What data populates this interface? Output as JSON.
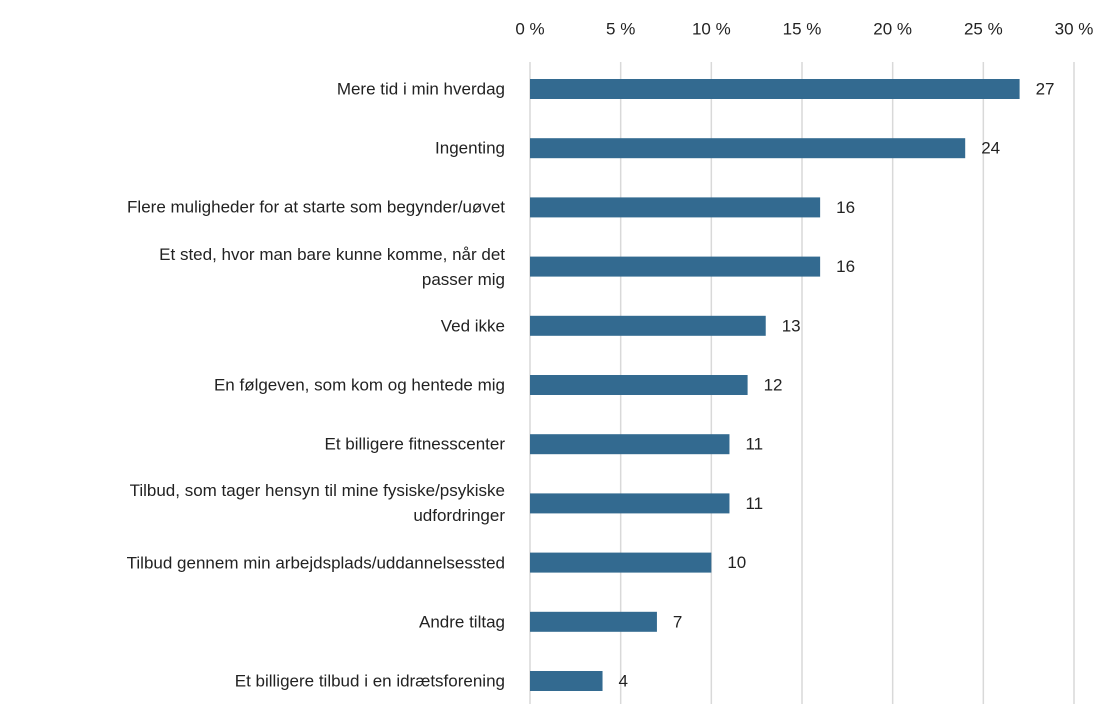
{
  "chart_data": {
    "type": "barh",
    "categories": [
      "Mere tid i min hverdag",
      "Ingenting",
      "Flere muligheder for at starte som begynder/uøvet",
      "Et sted, hvor man bare kunne komme, når det\npasser mig",
      "Ved ikke",
      "En følgeven, som kom og hentede mig",
      "Et billigere fitnesscenter",
      "Tilbud, som tager hensyn til mine fysiske/psykiske\nudfordringer",
      "Tilbud gennem min arbejdsplads/uddannelsessted",
      "Andre tiltag",
      "Et billigere tilbud i en idrætsforening"
    ],
    "values": [
      27,
      24,
      16,
      16,
      13,
      12,
      11,
      11,
      10,
      7,
      4
    ],
    "color": "#336a90",
    "xlim": [
      0,
      30
    ],
    "xticks": [
      {
        "value": 0,
        "label": "0 %"
      },
      {
        "value": 5,
        "label": "5 %"
      },
      {
        "value": 10,
        "label": "10 %"
      },
      {
        "value": 15,
        "label": "15 %"
      },
      {
        "value": 20,
        "label": "20 %"
      },
      {
        "value": 25,
        "label": "25 %"
      },
      {
        "value": 30,
        "label": "30 %"
      }
    ],
    "grid": true
  }
}
